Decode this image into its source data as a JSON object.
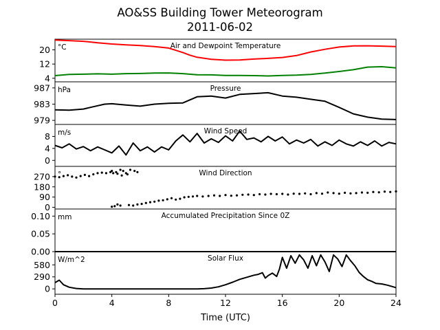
{
  "figure": {
    "title": "AO&SS Building Tower Meteorogram",
    "subtitle": "2011-06-02",
    "xlabel": "Time (UTC)",
    "x_range": [
      0,
      24
    ],
    "x_ticks": [
      0,
      4,
      8,
      12,
      16,
      20,
      24
    ]
  },
  "chart_data": [
    {
      "type": "line",
      "title": "Air and Dewpoint Temperature",
      "unit": "°C",
      "ylim": [
        2,
        26
      ],
      "y_ticks": [
        4,
        12,
        20
      ],
      "series": [
        {
          "name": "",
          "color": "#ff0000",
          "x": [
            0,
            1,
            2,
            3,
            4,
            5,
            6,
            7,
            8,
            9,
            9.5,
            10,
            11,
            12,
            13,
            14,
            15,
            16,
            17,
            18,
            19,
            20,
            21,
            22,
            23,
            24
          ],
          "y": [
            25.5,
            25.2,
            24.8,
            24.0,
            23.3,
            22.8,
            22.4,
            21.8,
            21.0,
            18.5,
            17.0,
            15.8,
            14.7,
            14.2,
            14.3,
            14.8,
            15.2,
            15.7,
            16.8,
            18.8,
            20.3,
            21.6,
            22.2,
            22.3,
            22.1,
            21.8
          ]
        },
        {
          "name": "",
          "color": "#008000",
          "x": [
            0,
            1,
            2,
            3,
            4,
            5,
            6,
            7,
            8,
            9,
            10,
            11,
            12,
            13,
            14,
            15,
            16,
            17,
            18,
            19,
            20,
            21,
            22,
            23,
            24
          ],
          "y": [
            5.5,
            6.2,
            6.3,
            6.5,
            6.3,
            6.6,
            6.7,
            6.9,
            7.0,
            6.6,
            6.0,
            5.9,
            5.6,
            5.6,
            5.5,
            5.3,
            5.6,
            5.8,
            6.2,
            6.9,
            7.8,
            8.8,
            10.3,
            10.5,
            9.8
          ]
        }
      ]
    },
    {
      "type": "line",
      "title": "Pressure",
      "unit": "hPa",
      "ylim": [
        978,
        988.5
      ],
      "y_ticks": [
        979,
        983,
        987
      ],
      "series": [
        {
          "name": "",
          "color": "#000000",
          "x": [
            0,
            1,
            2,
            3,
            3.5,
            4,
            5,
            6,
            7,
            8,
            9,
            10,
            11,
            12,
            13,
            14,
            15,
            16,
            17,
            18,
            19,
            20,
            21,
            22,
            23,
            24
          ],
          "y": [
            981.6,
            981.5,
            981.8,
            982.6,
            983.0,
            983.1,
            982.8,
            982.5,
            983.0,
            983.2,
            983.3,
            984.8,
            985.0,
            984.5,
            985.4,
            985.6,
            985.8,
            985.0,
            984.7,
            984.2,
            983.7,
            982.2,
            980.6,
            979.8,
            979.3,
            979.2
          ]
        }
      ]
    },
    {
      "type": "line",
      "title": "Wind Speed",
      "unit": "m/s",
      "ylim": [
        -2,
        12
      ],
      "y_ticks": [
        0,
        4,
        8
      ],
      "series": [
        {
          "name": "",
          "color": "#000000",
          "x": [
            0,
            0.5,
            1,
            1.5,
            2,
            2.5,
            3,
            3.5,
            4,
            4.5,
            5,
            5.5,
            6,
            6.5,
            7,
            7.5,
            8,
            8.5,
            9,
            9.5,
            10,
            10.5,
            11,
            11.5,
            12,
            12.5,
            13,
            13.5,
            14,
            14.5,
            15,
            15.5,
            16,
            16.5,
            17,
            17.5,
            18,
            18.5,
            19,
            19.5,
            20,
            20.5,
            21,
            21.5,
            22,
            22.5,
            23,
            23.5,
            24
          ],
          "y": [
            5,
            4.2,
            5.5,
            3.8,
            4.6,
            3.2,
            4.5,
            3.5,
            2.5,
            4.8,
            1.8,
            5.8,
            3.2,
            4.5,
            2.8,
            4.5,
            3.5,
            6.5,
            8.5,
            6.2,
            9.0,
            5.8,
            7.2,
            6.0,
            8.2,
            6.5,
            9.8,
            7.0,
            7.5,
            6.2,
            8.0,
            6.5,
            7.8,
            5.5,
            6.8,
            5.8,
            7.0,
            4.8,
            6.2,
            5.0,
            6.8,
            5.5,
            4.8,
            6.2,
            5.0,
            6.5,
            4.8,
            6.0,
            5.5
          ]
        }
      ]
    },
    {
      "type": "scatter",
      "title": "Wind Direction",
      "unit": "°",
      "ylim": [
        -15,
        360
      ],
      "y_ticks": [
        0,
        90,
        180,
        270
      ],
      "series": [
        {
          "name": "",
          "color": "#000000",
          "x": [
            0,
            0.3,
            0.6,
            0.9,
            1.2,
            1.5,
            1.8,
            2.1,
            2.4,
            2.7,
            3.0,
            3.3,
            3.6,
            3.9,
            4.0,
            4.1,
            4.3,
            4.4,
            4.6,
            4.7,
            4.8,
            5.0,
            5.1,
            5.3,
            5.6,
            5.8,
            4.0,
            4.2,
            4.4,
            4.6,
            5.2,
            5.5,
            5.8,
            6.1,
            6.4,
            6.7,
            7.0,
            7.3,
            7.6,
            7.9,
            8.2,
            8.5,
            8.8,
            9.1,
            9.4,
            9.7,
            10.0,
            10.4,
            10.8,
            11.2,
            11.6,
            12.0,
            12.4,
            12.8,
            13.2,
            13.6,
            14.0,
            14.4,
            14.8,
            15.2,
            15.6,
            16.0,
            16.4,
            16.8,
            17.2,
            17.6,
            18.0,
            18.4,
            18.8,
            19.2,
            19.6,
            20.0,
            20.4,
            20.8,
            21.2,
            21.6,
            22.0,
            22.4,
            22.8,
            23.2,
            23.6,
            24.0
          ],
          "y": [
            270,
            265,
            275,
            282,
            270,
            262,
            275,
            285,
            275,
            290,
            300,
            305,
            300,
            310,
            320,
            300,
            310,
            295,
            330,
            280,
            320,
            300,
            290,
            330,
            320,
            310,
            5,
            10,
            25,
            15,
            20,
            15,
            25,
            30,
            38,
            45,
            50,
            58,
            62,
            70,
            80,
            68,
            75,
            88,
            92,
            95,
            100,
            95,
            100,
            105,
            100,
            108,
            102,
            105,
            110,
            112,
            108,
            115,
            112,
            118,
            115,
            118,
            112,
            120,
            118,
            122,
            115,
            125,
            120,
            130,
            125,
            120,
            128,
            122,
            125,
            130,
            128,
            135,
            132,
            138,
            135,
            140
          ]
        }
      ]
    },
    {
      "type": "line",
      "title": "Accumulated Precipitation Since 0Z",
      "unit": "mm",
      "ylim": [
        0,
        0.12
      ],
      "y_ticks": [
        "0.00",
        "0.05",
        "0.10"
      ],
      "series": [
        {
          "name": "",
          "color": "#000000",
          "x": [
            0,
            24
          ],
          "y": [
            0,
            0
          ]
        }
      ]
    },
    {
      "type": "line",
      "title": "Solar Flux",
      "unit": "W/m^2",
      "ylim": [
        -130,
        900
      ],
      "y_ticks": [
        0,
        290,
        580
      ],
      "series": [
        {
          "name": "",
          "color": "#000000",
          "x": [
            0,
            0.3,
            0.6,
            1.0,
            1.5,
            2,
            3,
            4,
            5,
            6,
            7,
            8,
            9,
            10,
            10.5,
            11,
            11.5,
            12,
            12.5,
            13,
            13.5,
            14,
            14.3,
            14.6,
            14.8,
            15.0,
            15.3,
            15.6,
            15.8,
            16.0,
            16.3,
            16.6,
            16.9,
            17.2,
            17.5,
            17.8,
            18.1,
            18.4,
            18.7,
            19.0,
            19.3,
            19.6,
            19.9,
            20.2,
            20.5,
            20.8,
            21.1,
            21.4,
            21.7,
            22.0,
            22.3,
            22.6,
            23.0,
            23.4,
            23.8,
            24.0
          ],
          "y": [
            150,
            210,
            100,
            40,
            10,
            0,
            0,
            0,
            0,
            0,
            0,
            0,
            0,
            0,
            5,
            20,
            50,
            100,
            160,
            230,
            280,
            330,
            350,
            390,
            260,
            320,
            380,
            300,
            480,
            760,
            500,
            800,
            620,
            820,
            700,
            500,
            800,
            560,
            820,
            650,
            420,
            820,
            720,
            540,
            820,
            680,
            560,
            400,
            300,
            220,
            180,
            130,
            120,
            90,
            50,
            30
          ]
        }
      ]
    }
  ]
}
